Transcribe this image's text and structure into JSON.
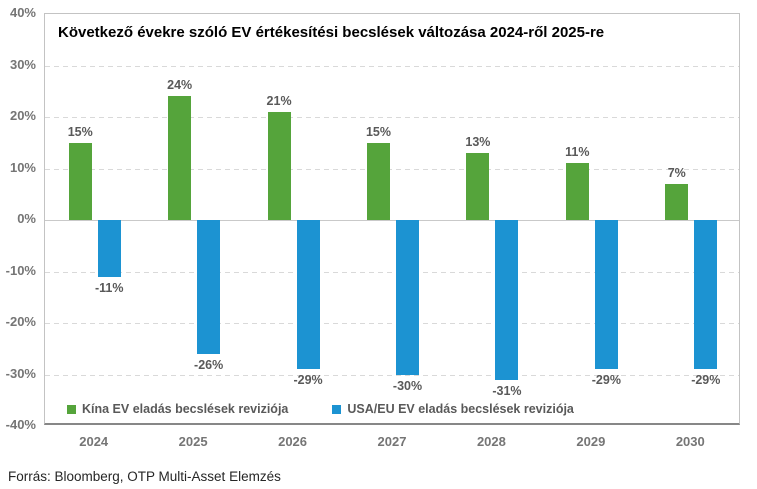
{
  "title": "Következő évekre szóló EV értékesítési becslések változása 2024-ről 2025-re",
  "source": "Forrás: Bloomberg, OTP Multi-Asset Elemzés",
  "colors": {
    "china_green": "#55A43B",
    "usaeu_blue": "#1C93D2",
    "gridline": "#D9D9D9",
    "axis_text": "#757575",
    "data_label_text": "#595959",
    "title_text": "#000000",
    "plot_border": "#C3C3C3",
    "axis_line": "#878787"
  },
  "chart_data": {
    "type": "bar",
    "categories": [
      "2024",
      "2025",
      "2026",
      "2027",
      "2028",
      "2029",
      "2030"
    ],
    "series": [
      {
        "name": "Kína EV eladás becslések reviziója",
        "color": "#55A43B",
        "values": [
          15,
          24,
          21,
          15,
          13,
          11,
          7
        ]
      },
      {
        "name": "USA/EU EV eladás becslések reviziója",
        "color": "#1C93D2",
        "values": [
          -11,
          -26,
          -29,
          -30,
          -31,
          -29,
          -29
        ]
      }
    ],
    "data_label_format": "percent",
    "title": "Következő évekre szóló EV értékesítési becslések változása 2024-ről 2025-re",
    "xlabel": "",
    "ylabel": "",
    "ylim": [
      -40,
      40
    ],
    "ytick_step": 10,
    "ytick_labels": [
      "40%",
      "30%",
      "20%",
      "10%",
      "0%",
      "-10%",
      "-20%",
      "-30%",
      "-40%"
    ],
    "grid": true,
    "gridline_style": "dashed",
    "legend_position": "bottom-inside"
  }
}
